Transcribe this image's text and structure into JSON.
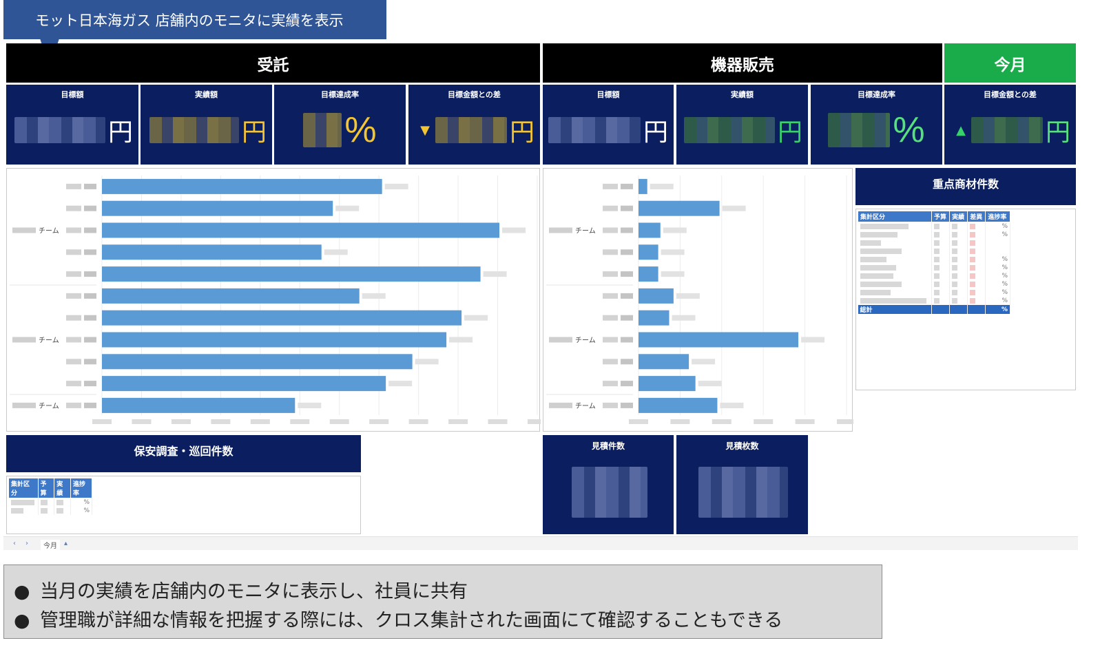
{
  "callout": {
    "text": "モット日本海ガス 店舗内のモニタに実績を表示"
  },
  "sections": {
    "consign": "受託",
    "equipment": "機器販売",
    "period": "今月"
  },
  "kpis": [
    {
      "label": "目標額",
      "unit": "円"
    },
    {
      "label": "実績額",
      "unit": "円"
    },
    {
      "label": "目標達成率",
      "unit": "%"
    },
    {
      "label": "目標金額との差",
      "unit": "円",
      "arrow": "▼"
    },
    {
      "label": "目標額",
      "unit": "円"
    },
    {
      "label": "実績額",
      "unit": "円"
    },
    {
      "label": "目標達成率",
      "unit": "%"
    },
    {
      "label": "目標金額との差",
      "unit": "円",
      "arrow": "▲"
    }
  ],
  "colors": {
    "navy": "#0b1f60",
    "bar": "#5b9bd5",
    "green": "#1aac4a",
    "callout": "#2f5597"
  },
  "chart_data": [
    {
      "type": "bar",
      "orientation": "horizontal",
      "group_labels": [
        "チーム",
        "チーム",
        "チーム"
      ],
      "values": [
        74,
        61,
        105,
        58,
        100,
        68,
        95,
        91,
        82,
        75,
        51
      ],
      "xlim": [
        0,
        115
      ],
      "grid": true
    },
    {
      "type": "bar",
      "orientation": "horizontal",
      "group_labels": [
        "チーム",
        "チーム",
        "チーム"
      ],
      "values": [
        4,
        37,
        10,
        9,
        9,
        16,
        14,
        73,
        23,
        26,
        36
      ],
      "xlim": [
        0,
        95
      ],
      "grid": true
    }
  ],
  "panels": {
    "key_items": {
      "title": "重点商材件数",
      "headers": [
        "集計区分",
        "予算",
        "実績",
        "差異",
        "進捗率"
      ],
      "total_label": "総計",
      "pct": "%"
    },
    "safety": {
      "title": "保安調査・巡回件数",
      "headers": [
        "集計区分",
        "予算",
        "実績",
        "進捗率"
      ],
      "pct": "%"
    },
    "estimates_count": {
      "title": "見積件数"
    },
    "estimates_sheets": {
      "title": "見積枚数"
    }
  },
  "tabbar": {
    "prev": "‹",
    "next": "›",
    "tab": "今月",
    "add": "▴"
  },
  "notes": {
    "bullet": "●",
    "lines": [
      "当月の実績を店舗内のモニタに表示し、社員に共有",
      "管理職が詳細な情報を把握する際には、クロス集計された画面にて確認することもできる"
    ]
  }
}
